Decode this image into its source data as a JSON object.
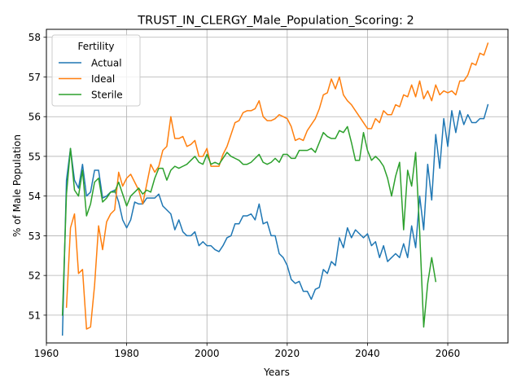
{
  "chart_data": {
    "type": "line",
    "title": "TRUST_IN_CLERGY_Male_Population_Scoring: 2",
    "xlabel": "Years",
    "ylabel": "% of Male Population",
    "xlim": [
      1960,
      2075
    ],
    "ylim": [
      50.3,
      58.2
    ],
    "xticks": [
      1960,
      1980,
      2000,
      2020,
      2040,
      2060
    ],
    "yticks": [
      51,
      52,
      53,
      54,
      55,
      56,
      57,
      58
    ],
    "grid": true,
    "legend": {
      "title": "Fertility",
      "placement": "top-left"
    },
    "series": [
      {
        "name": "Actual",
        "color": "#1f77b4",
        "x": [
          1964,
          1965,
          1966,
          1967,
          1968,
          1969,
          1970,
          1971,
          1972,
          1973,
          1974,
          1975,
          1976,
          1977,
          1978,
          1979,
          1980,
          1981,
          1982,
          1983,
          1984,
          1985,
          1986,
          1987,
          1988,
          1989,
          1990,
          1991,
          1992,
          1993,
          1994,
          1995,
          1996,
          1997,
          1998,
          1999,
          2000,
          2001,
          2002,
          2003,
          2004,
          2005,
          2006,
          2007,
          2008,
          2009,
          2010,
          2011,
          2012,
          2013,
          2014,
          2015,
          2016,
          2017,
          2018,
          2019,
          2020,
          2021,
          2022,
          2023,
          2024,
          2025,
          2026,
          2027,
          2028,
          2029,
          2030,
          2031,
          2032,
          2033,
          2034,
          2035,
          2036,
          2037,
          2038,
          2039,
          2040,
          2041,
          2042,
          2043,
          2044,
          2045,
          2046,
          2047,
          2048,
          2049,
          2050,
          2051,
          2052,
          2053,
          2054,
          2055,
          2056,
          2057,
          2058,
          2059,
          2060,
          2061,
          2062,
          2063,
          2064,
          2065,
          2066,
          2067,
          2068,
          2069,
          2070
        ],
        "values": [
          50.5,
          54.4,
          55.2,
          54.4,
          54.2,
          54.8,
          54.0,
          54.1,
          54.65,
          54.65,
          53.95,
          54.0,
          54.1,
          54.15,
          53.85,
          53.4,
          53.2,
          53.4,
          53.85,
          53.8,
          53.8,
          53.95,
          53.95,
          53.95,
          54.05,
          53.75,
          53.65,
          53.55,
          53.15,
          53.4,
          53.1,
          53.0,
          53.0,
          53.1,
          52.75,
          52.85,
          52.75,
          52.75,
          52.65,
          52.6,
          52.75,
          52.95,
          53.0,
          53.3,
          53.3,
          53.5,
          53.5,
          53.55,
          53.4,
          53.8,
          53.3,
          53.35,
          53.0,
          53.0,
          52.55,
          52.45,
          52.25,
          51.9,
          51.8,
          51.85,
          51.6,
          51.6,
          51.4,
          51.65,
          51.7,
          52.15,
          52.05,
          52.35,
          52.25,
          52.95,
          52.7,
          53.2,
          52.95,
          53.15,
          53.05,
          52.95,
          53.05,
          52.75,
          52.85,
          52.45,
          52.75,
          52.35,
          52.45,
          52.55,
          52.45,
          52.8,
          52.45,
          53.25,
          52.7,
          54.0,
          53.15,
          54.8,
          53.9,
          55.55,
          54.7,
          55.95,
          55.25,
          56.15,
          55.6,
          56.15,
          55.8,
          56.05,
          55.85,
          55.85,
          55.95,
          55.95,
          56.3
        ]
      },
      {
        "name": "Ideal",
        "color": "#ff7f0e",
        "x": [
          1965,
          1966,
          1967,
          1968,
          1969,
          1970,
          1971,
          1972,
          1973,
          1974,
          1975,
          1976,
          1977,
          1978,
          1979,
          1980,
          1981,
          1982,
          1983,
          1984,
          1985,
          1986,
          1987,
          1988,
          1989,
          1990,
          1991,
          1992,
          1993,
          1994,
          1995,
          1996,
          1997,
          1998,
          1999,
          2000,
          2001,
          2002,
          2003,
          2004,
          2005,
          2006,
          2007,
          2008,
          2009,
          2010,
          2011,
          2012,
          2013,
          2014,
          2015,
          2016,
          2017,
          2018,
          2019,
          2020,
          2021,
          2022,
          2023,
          2024,
          2025,
          2026,
          2027,
          2028,
          2029,
          2030,
          2031,
          2032,
          2033,
          2034,
          2035,
          2036,
          2037,
          2038,
          2039,
          2040,
          2041,
          2042,
          2043,
          2044,
          2045,
          2046,
          2047,
          2048,
          2049,
          2050,
          2051,
          2052,
          2053,
          2054,
          2055,
          2056,
          2057,
          2058,
          2059,
          2060,
          2061,
          2062,
          2063,
          2064,
          2065,
          2066,
          2067,
          2068,
          2069,
          2070
        ],
        "values": [
          51.2,
          53.2,
          53.55,
          52.05,
          52.15,
          50.65,
          50.7,
          51.75,
          53.25,
          52.65,
          53.35,
          53.55,
          53.65,
          54.6,
          54.25,
          54.45,
          54.55,
          54.35,
          54.15,
          53.8,
          54.3,
          54.8,
          54.6,
          54.75,
          55.15,
          55.25,
          56.0,
          55.45,
          55.45,
          55.5,
          55.25,
          55.3,
          55.4,
          55.0,
          55.0,
          55.2,
          54.75,
          54.75,
          54.75,
          55.05,
          55.25,
          55.55,
          55.85,
          55.9,
          56.1,
          56.15,
          56.15,
          56.2,
          56.4,
          56.0,
          55.9,
          55.9,
          55.95,
          56.05,
          56.0,
          55.95,
          55.75,
          55.4,
          55.45,
          55.4,
          55.65,
          55.8,
          55.95,
          56.2,
          56.55,
          56.6,
          56.95,
          56.7,
          57.0,
          56.55,
          56.4,
          56.3,
          56.15,
          56.0,
          55.85,
          55.7,
          55.7,
          55.95,
          55.85,
          56.15,
          56.05,
          56.05,
          56.3,
          56.25,
          56.55,
          56.5,
          56.8,
          56.5,
          56.9,
          56.45,
          56.65,
          56.4,
          56.8,
          56.55,
          56.65,
          56.6,
          56.65,
          56.55,
          56.9,
          56.9,
          57.05,
          57.35,
          57.3,
          57.6,
          57.55,
          57.85
        ]
      },
      {
        "name": "Sterile",
        "color": "#2ca02c",
        "x": [
          1964,
          1965,
          1966,
          1967,
          1968,
          1969,
          1970,
          1971,
          1972,
          1973,
          1974,
          1975,
          1976,
          1977,
          1978,
          1979,
          1980,
          1981,
          1982,
          1983,
          1984,
          1985,
          1986,
          1987,
          1988,
          1989,
          1990,
          1991,
          1992,
          1993,
          1994,
          1995,
          1996,
          1997,
          1998,
          1999,
          2000,
          2001,
          2002,
          2003,
          2004,
          2005,
          2006,
          2007,
          2008,
          2009,
          2010,
          2011,
          2012,
          2013,
          2014,
          2015,
          2016,
          2017,
          2018,
          2019,
          2020,
          2021,
          2022,
          2023,
          2024,
          2025,
          2026,
          2027,
          2028,
          2029,
          2030,
          2031,
          2032,
          2033,
          2034,
          2035,
          2036,
          2037,
          2038,
          2039,
          2040,
          2041,
          2042,
          2043,
          2044,
          2045,
          2046,
          2047,
          2048,
          2049,
          2050,
          2051,
          2052,
          2053,
          2054,
          2055,
          2056,
          2057
        ],
        "values": [
          51.0,
          54.05,
          55.2,
          54.15,
          54.0,
          54.65,
          53.5,
          53.8,
          54.35,
          54.45,
          53.85,
          53.95,
          54.1,
          54.1,
          54.35,
          54.05,
          53.75,
          54.0,
          54.1,
          54.2,
          54.05,
          54.15,
          54.1,
          54.45,
          54.7,
          54.7,
          54.4,
          54.65,
          54.75,
          54.7,
          54.75,
          54.8,
          54.9,
          55.0,
          54.85,
          54.8,
          55.05,
          54.8,
          54.85,
          54.8,
          54.95,
          55.1,
          55.0,
          54.95,
          54.9,
          54.8,
          54.8,
          54.85,
          54.95,
          55.05,
          54.85,
          54.8,
          54.85,
          54.95,
          54.85,
          55.05,
          55.05,
          54.95,
          54.95,
          55.15,
          55.15,
          55.15,
          55.2,
          55.1,
          55.35,
          55.6,
          55.5,
          55.45,
          55.45,
          55.65,
          55.6,
          55.75,
          55.35,
          54.9,
          54.9,
          55.6,
          55.15,
          54.9,
          55.0,
          54.9,
          54.75,
          54.45,
          54.0,
          54.5,
          54.85,
          53.15,
          54.65,
          54.25,
          55.1,
          53.1,
          50.7,
          51.8,
          52.45,
          51.85
        ]
      }
    ]
  }
}
